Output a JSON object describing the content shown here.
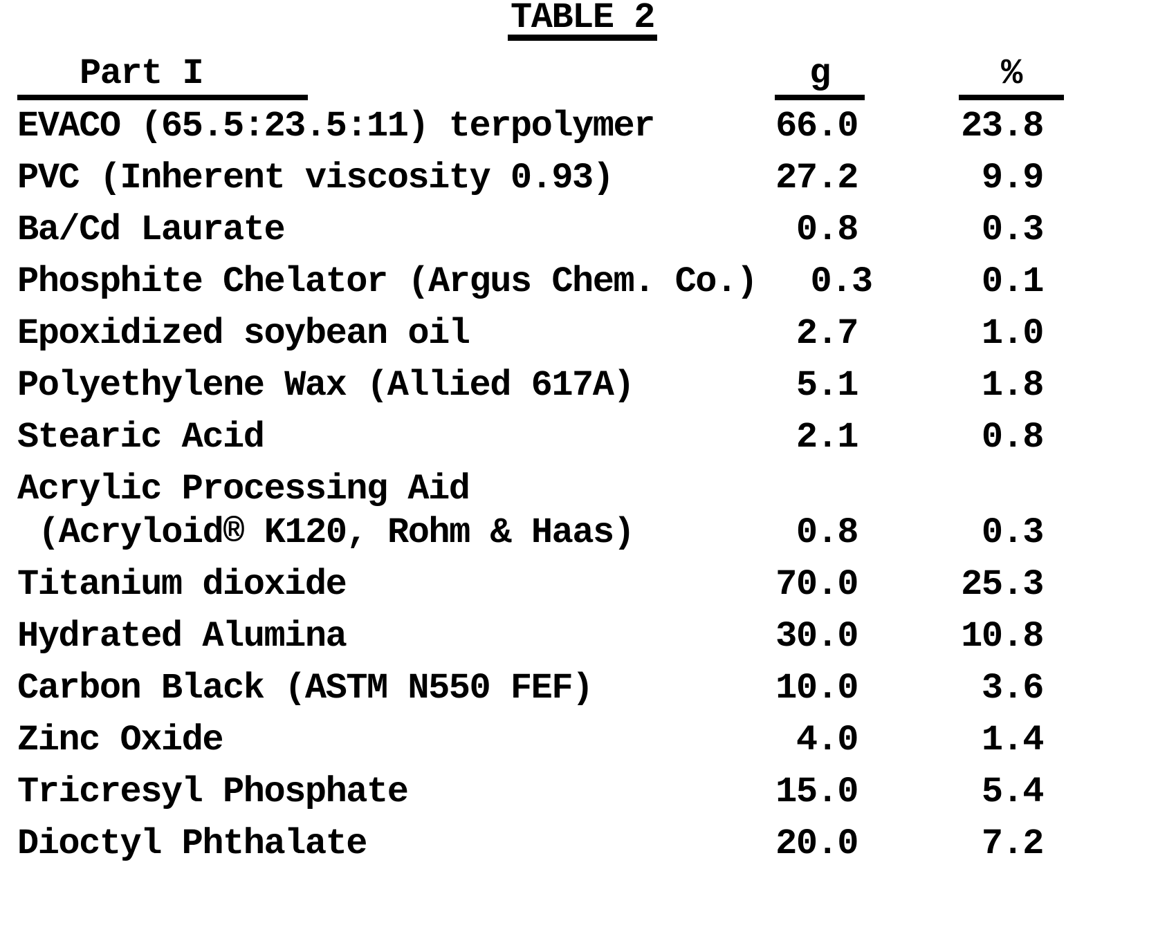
{
  "title": "TABLE 2",
  "table": {
    "part_label": "Part I",
    "col_g": "g",
    "col_pct": "%",
    "rows": [
      {
        "label": "EVACO (65.5:23.5:11) terpolymer",
        "g": "66.0",
        "pct": "23.8"
      },
      {
        "label": "PVC (Inherent viscosity 0.93)",
        "g": "27.2",
        "pct": "9.9"
      },
      {
        "label": "Ba/Cd Laurate",
        "g": "0.8",
        "pct": "0.3"
      },
      {
        "label": "Phosphite Chelator (Argus Chem. Co.)",
        "g": "0.3",
        "pct": "0.1"
      },
      {
        "label": "Epoxidized soybean oil",
        "g": "2.7",
        "pct": "1.0"
      },
      {
        "label": "Polyethylene Wax (Allied 617A)",
        "g": "5.1",
        "pct": "1.8"
      },
      {
        "label": "Stearic Acid",
        "g": "2.1",
        "pct": "0.8"
      },
      {
        "label": "Acrylic Processing Aid",
        "sublabel": "(Acryloid® K120, Rohm & Haas)",
        "g": "0.8",
        "pct": "0.3"
      },
      {
        "label": "Titanium dioxide",
        "g": "70.0",
        "pct": "25.3",
        "gap_before": true
      },
      {
        "label": "Hydrated Alumina",
        "g": "30.0",
        "pct": "10.8"
      },
      {
        "label": "Carbon Black (ASTM N550 FEF)",
        "g": "10.0",
        "pct": "3.6"
      },
      {
        "label": "Zinc Oxide",
        "g": "4.0",
        "pct": "1.4"
      },
      {
        "label": "Tricresyl Phosphate",
        "g": "15.0",
        "pct": "5.4"
      },
      {
        "label": "Dioctyl Phthalate",
        "g": "20.0",
        "pct": "7.2"
      }
    ]
  }
}
